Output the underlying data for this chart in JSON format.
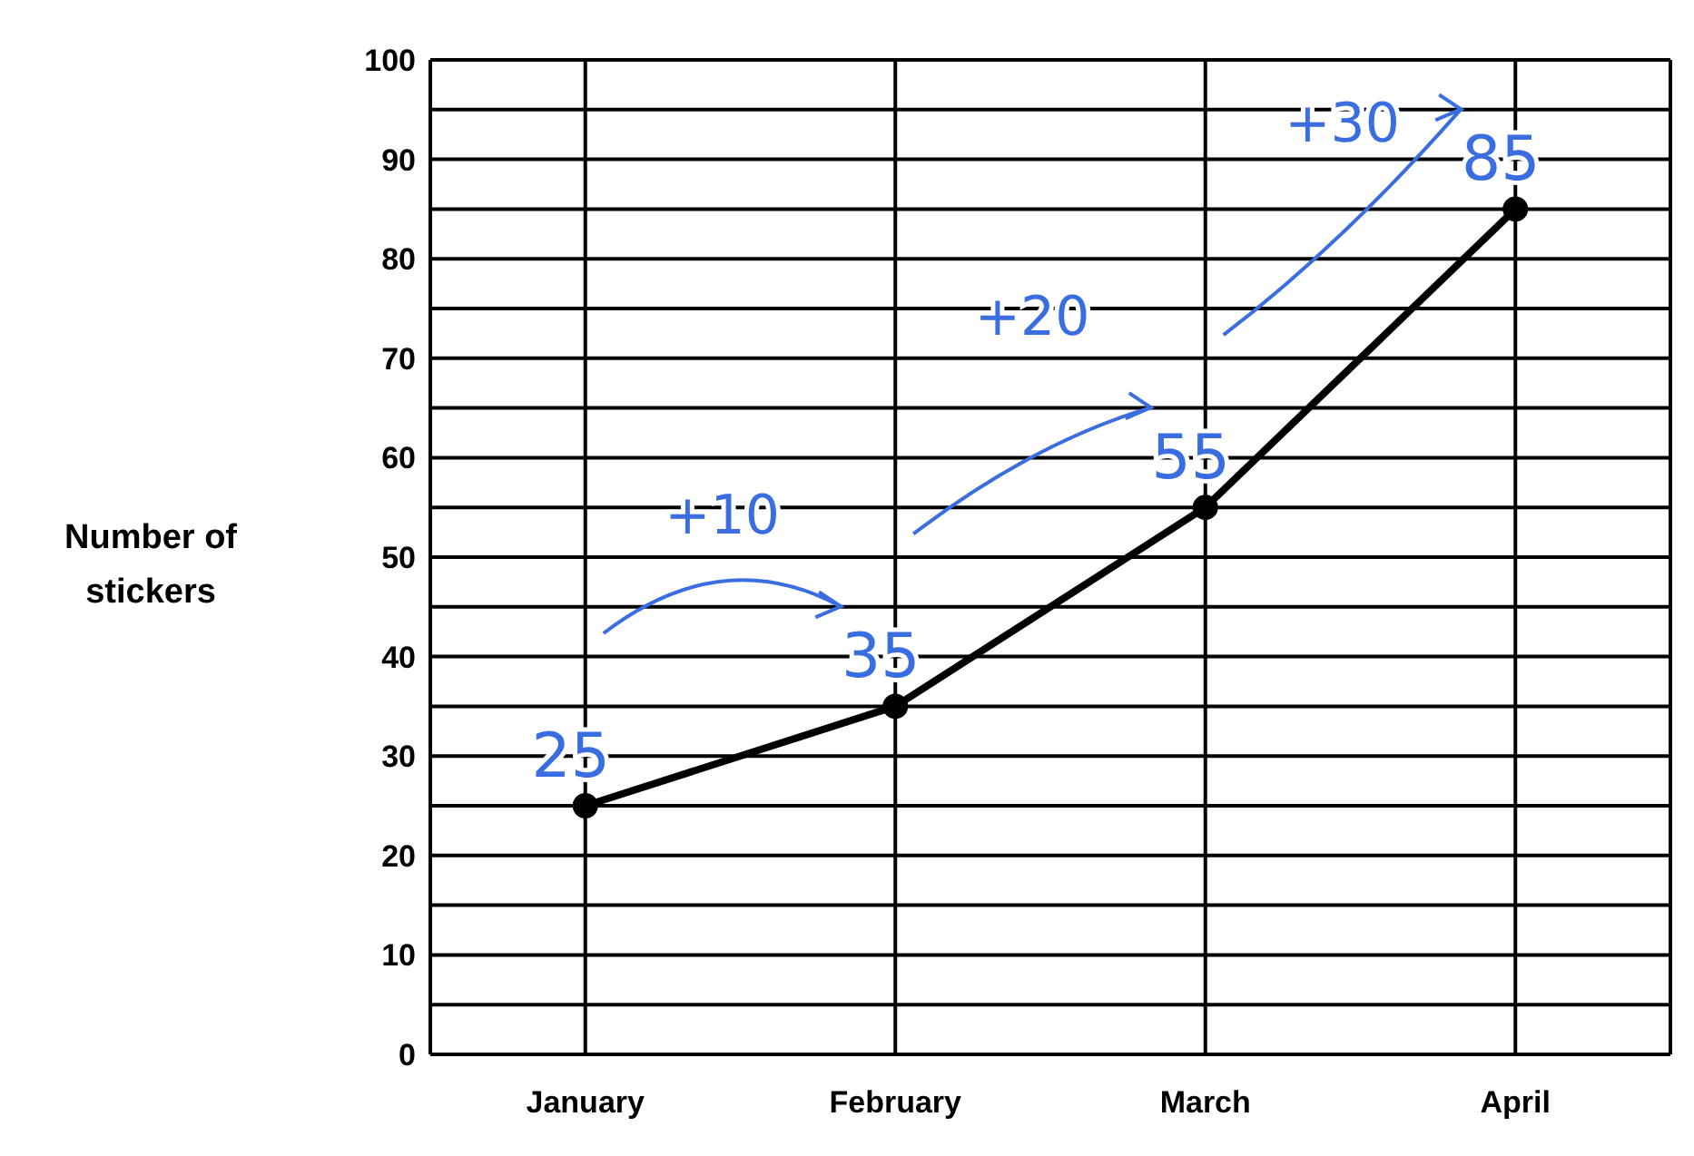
{
  "chart_data": {
    "type": "line",
    "ylabel": "Number of stickers",
    "categories": [
      "January",
      "February",
      "March",
      "April"
    ],
    "series": [
      {
        "color": "#000000",
        "values": [
          25,
          35,
          55,
          85
        ],
        "value_labels": [
          "25",
          "35",
          "55",
          "85"
        ]
      }
    ],
    "ylim": [
      0,
      100
    ],
    "yticks": [
      0,
      {
        "value": 5,
        "label": null
      },
      10,
      {
        "value": 15,
        "label": null
      },
      20,
      {
        "value": 25,
        "label": null
      },
      30,
      {
        "value": 35,
        "label": null
      },
      40,
      {
        "value": 45,
        "label": null
      },
      50,
      {
        "value": 55,
        "label": null
      },
      60,
      {
        "value": 65,
        "label": null
      },
      70,
      {
        "value": 75,
        "label": null
      },
      80,
      {
        "value": 85,
        "label": null
      },
      90,
      {
        "value": 95,
        "label": null
      },
      100
    ],
    "grid": true,
    "marker": "circle",
    "line_style": "solid",
    "annotations": [
      "+10",
      "+20",
      "+30"
    ]
  }
}
